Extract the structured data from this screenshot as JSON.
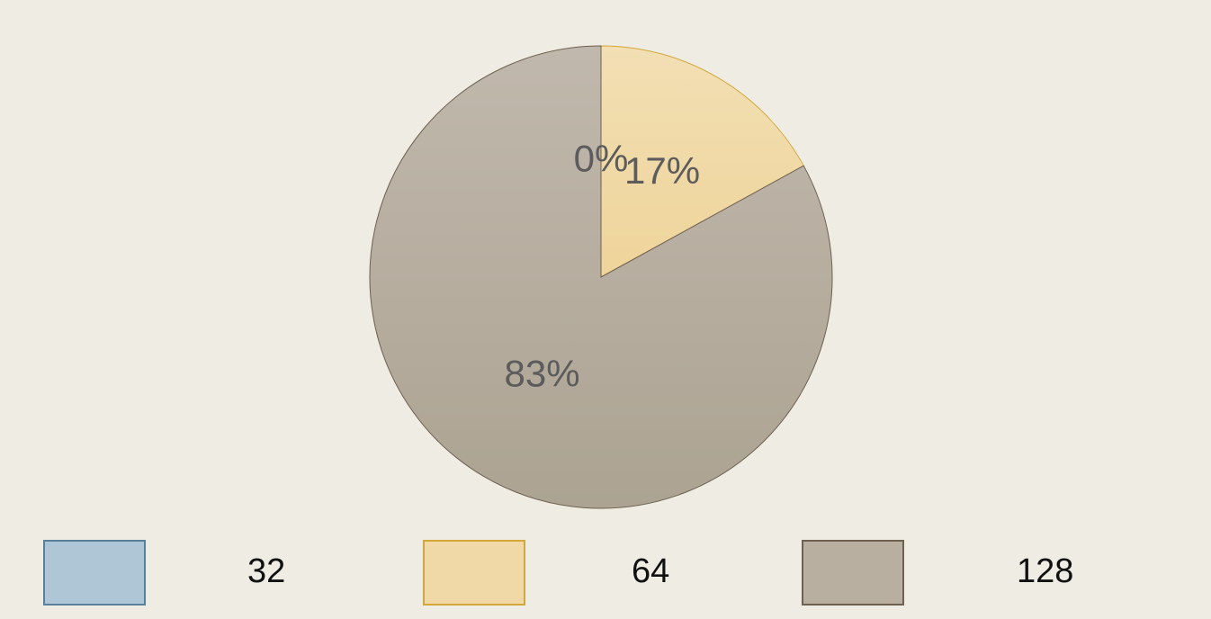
{
  "chart_data": {
    "type": "pie",
    "slices": [
      {
        "label": "32",
        "value": 0,
        "percent_label": "0%",
        "fill": "#aec6d5",
        "stroke": "#5a7f9a"
      },
      {
        "label": "64",
        "value": 17,
        "percent_label": "17%",
        "fill": "#f0d9a6",
        "stroke": "#d4a838"
      },
      {
        "label": "128",
        "value": 83,
        "percent_label": "83%",
        "fill": "#b8afa0",
        "stroke": "#6e6150"
      }
    ],
    "start_angle_deg": 0,
    "direction": "clockwise",
    "legend_position": "bottom",
    "title": ""
  }
}
